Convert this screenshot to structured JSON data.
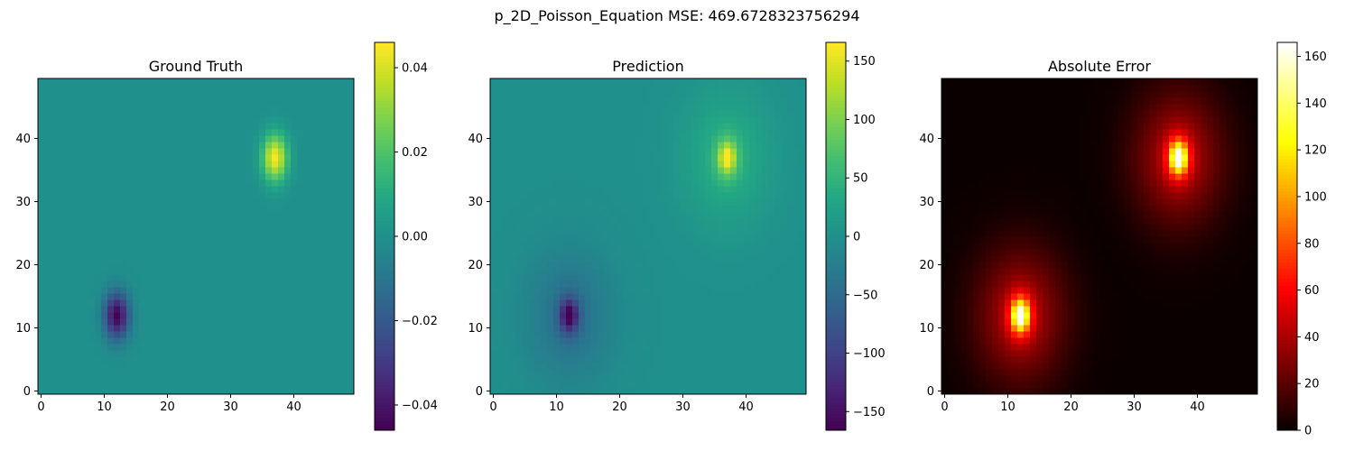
{
  "figure_title": "p_2D_Poisson_Equation MSE: 469.6728323756294",
  "colors": {
    "background": "#ffffff",
    "axis": "#000000"
  },
  "chart_data": [
    {
      "type": "heatmap",
      "title": "Ground Truth",
      "colormap": "viridis",
      "grid": false,
      "xlim": [
        0,
        49
      ],
      "ylim": [
        0,
        49
      ],
      "x_ticks": [
        0,
        10,
        20,
        30,
        40
      ],
      "y_ticks": [
        0,
        10,
        20,
        30,
        40
      ],
      "field": {
        "shape": [
          50,
          50
        ],
        "description_kind": "two_gaussian_bumps",
        "negative_peak": {
          "x": 12,
          "y": 12,
          "value": -0.045
        },
        "positive_peak": {
          "x": 37,
          "y": 37,
          "value": 0.045
        }
      },
      "colorbar": {
        "min": -0.046,
        "max": 0.046,
        "ticks": [
          -0.04,
          -0.02,
          0.0,
          0.02,
          0.04
        ],
        "tick_labels": [
          "−0.04",
          "−0.02",
          "0.00",
          "0.02",
          "0.04"
        ]
      }
    },
    {
      "type": "heatmap",
      "title": "Prediction",
      "colormap": "viridis",
      "grid": false,
      "xlim": [
        0,
        49
      ],
      "ylim": [
        0,
        49
      ],
      "x_ticks": [
        0,
        10,
        20,
        30,
        40
      ],
      "y_ticks": [
        0,
        10,
        20,
        30,
        40
      ],
      "field": {
        "shape": [
          50,
          50
        ],
        "description_kind": "two_gaussian_bumps_broad",
        "negative_peak": {
          "x": 12,
          "y": 12,
          "value": -165
        },
        "positive_peak": {
          "x": 37,
          "y": 37,
          "value": 165
        }
      },
      "colorbar": {
        "min": -166,
        "max": 166,
        "ticks": [
          -150,
          -100,
          -50,
          0,
          50,
          100,
          150
        ],
        "tick_labels": [
          "−150",
          "−100",
          "−50",
          "0",
          "50",
          "100",
          "150"
        ]
      }
    },
    {
      "type": "heatmap",
      "title": "Absolute Error",
      "colormap": "hot",
      "grid": false,
      "xlim": [
        0,
        49
      ],
      "ylim": [
        0,
        49
      ],
      "x_ticks": [
        0,
        10,
        20,
        30,
        40
      ],
      "y_ticks": [
        0,
        10,
        20,
        30,
        40
      ],
      "field": {
        "shape": [
          50,
          50
        ],
        "description_kind": "abs_difference",
        "peaks": [
          {
            "x": 12,
            "y": 12,
            "value": 165
          },
          {
            "x": 37,
            "y": 37,
            "value": 165
          }
        ]
      },
      "colorbar": {
        "min": 0,
        "max": 166,
        "ticks": [
          0,
          20,
          40,
          60,
          80,
          100,
          120,
          140,
          160
        ],
        "tick_labels": [
          "0",
          "20",
          "40",
          "60",
          "80",
          "100",
          "120",
          "140",
          "160"
        ]
      }
    }
  ]
}
